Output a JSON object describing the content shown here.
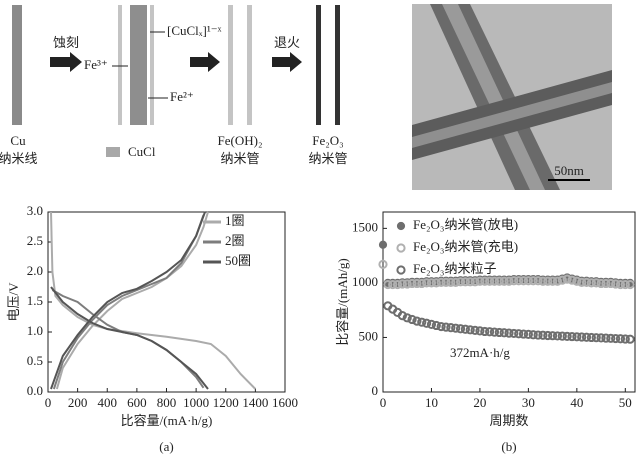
{
  "schematic": {
    "etch": "蚀刻",
    "fe3": "Fe³⁺",
    "complex": "[CuClₓ]¹⁻ˣ",
    "fe2": "Fe²⁺",
    "anneal": "退火",
    "cu": [
      "Cu",
      "纳米线"
    ],
    "cucl": "CuCl",
    "feoh": [
      "Fe(OH)₂",
      "纳米管"
    ],
    "fe2o3": [
      "Fe₂O₃",
      "纳米管"
    ]
  },
  "tem": {
    "scale_bar": "50nm"
  },
  "chart_data": [
    {
      "type": "line",
      "caption": "(a)",
      "xlabel": "比容量/(mA·h/g)",
      "ylabel": "电压/V",
      "xlim": [
        0,
        1600
      ],
      "xticks": [
        0,
        200,
        400,
        600,
        800,
        1000,
        1200,
        1400,
        1600
      ],
      "ylim": [
        0,
        3.0
      ],
      "yticks": [
        {
          "value": 0,
          "label": "0.0"
        },
        0.5,
        {
          "value": 1,
          "label": "1.0"
        },
        1.5,
        {
          "value": 2,
          "label": "2.0"
        },
        2.5,
        {
          "value": 3,
          "label": "3.0"
        }
      ],
      "legend": "upper right",
      "series": [
        {
          "name": "1圈",
          "color": "#ababab",
          "x": [
            20,
            30,
            50,
            100,
            200,
            300,
            400,
            600,
            800,
            1000,
            1100,
            1200,
            1300,
            1400,
            null,
            60,
            100,
            200,
            300,
            400,
            500,
            600,
            700,
            800,
            900,
            1000,
            1050,
            1080
          ],
          "values": [
            3.0,
            2.0,
            1.6,
            1.45,
            1.25,
            1.12,
            1.05,
            0.98,
            0.92,
            0.85,
            0.8,
            0.6,
            0.3,
            0.05,
            null,
            0.05,
            0.4,
            0.8,
            1.1,
            1.35,
            1.55,
            1.65,
            1.75,
            1.9,
            2.1,
            2.45,
            2.75,
            3.0
          ]
        },
        {
          "name": "2圈",
          "color": "#7d7d7d",
          "x": [
            30,
            100,
            200,
            300,
            400,
            500,
            600,
            700,
            800,
            900,
            1000,
            1050,
            null,
            40,
            100,
            200,
            300,
            400,
            500,
            700,
            800,
            900,
            1000,
            1050
          ],
          "values": [
            1.7,
            1.6,
            1.5,
            1.3,
            1.12,
            1.0,
            0.95,
            0.85,
            0.7,
            0.5,
            0.25,
            0.07,
            null,
            0.05,
            0.5,
            0.9,
            1.2,
            1.45,
            1.6,
            1.8,
            1.9,
            2.15,
            2.6,
            2.95
          ]
        },
        {
          "name": "50圈",
          "color": "#555555",
          "x": [
            20,
            100,
            200,
            300,
            400,
            600,
            700,
            800,
            900,
            1000,
            1080,
            null,
            20,
            100,
            200,
            300,
            400,
            500,
            600,
            700,
            800,
            900,
            1000,
            1060
          ],
          "values": [
            1.75,
            1.5,
            1.3,
            1.15,
            1.05,
            0.95,
            0.85,
            0.7,
            0.5,
            0.3,
            0.05,
            null,
            0.05,
            0.6,
            0.95,
            1.25,
            1.5,
            1.65,
            1.72,
            1.85,
            2.0,
            2.2,
            2.6,
            3.0
          ]
        }
      ]
    },
    {
      "type": "scatter",
      "caption": "(b)",
      "xlabel": "周期数",
      "ylabel": "比容量/(mAh/g)",
      "annotation": "372mA·h/g",
      "xlim": [
        0,
        52
      ],
      "xticks": [
        0,
        10,
        20,
        30,
        40,
        50
      ],
      "ylim": [
        0,
        1650
      ],
      "yticks": [
        0,
        500,
        1000,
        1500
      ],
      "legend": "upper left",
      "x": [
        0,
        1,
        2,
        3,
        4,
        5,
        6,
        7,
        8,
        9,
        10,
        11,
        12,
        13,
        14,
        15,
        16,
        17,
        18,
        19,
        20,
        21,
        22,
        23,
        24,
        25,
        26,
        27,
        28,
        29,
        30,
        31,
        32,
        33,
        34,
        35,
        36,
        37,
        38,
        39,
        40,
        41,
        42,
        43,
        44,
        45,
        46,
        47,
        48,
        49,
        50,
        51
      ],
      "series": [
        {
          "name": "Fe₂O₃纳米管(放电)",
          "color": "#6e6e6e",
          "marker": "filled",
          "values": [
            1350,
            1000,
            1000,
            1000,
            1005,
            1005,
            1010,
            1010,
            1010,
            1015,
            1015,
            1015,
            1020,
            1020,
            1020,
            1020,
            1025,
            1025,
            1025,
            1025,
            1030,
            1030,
            1030,
            1030,
            1030,
            1030,
            1030,
            1035,
            1035,
            1035,
            1035,
            1035,
            1035,
            1030,
            1030,
            1030,
            1030,
            1040,
            1050,
            1040,
            1030,
            1020,
            1020,
            1015,
            1015,
            1010,
            1010,
            1010,
            1005,
            1000,
            1000,
            1000
          ]
        },
        {
          "name": "Fe₂O₃纳米管(充电)",
          "color": "#b0b0b0",
          "marker": "open",
          "values": [
            1170,
            985,
            985,
            985,
            990,
            990,
            995,
            995,
            995,
            1000,
            1000,
            1000,
            1005,
            1005,
            1005,
            1005,
            1010,
            1010,
            1010,
            1010,
            1015,
            1015,
            1015,
            1015,
            1015,
            1015,
            1015,
            1020,
            1020,
            1020,
            1020,
            1020,
            1020,
            1015,
            1015,
            1015,
            1015,
            1025,
            1035,
            1025,
            1015,
            1005,
            1005,
            1000,
            1000,
            995,
            995,
            995,
            990,
            985,
            985,
            985
          ]
        },
        {
          "name": "Fe₂O₃纳米粒子",
          "color": "#6e6e6e",
          "marker": "open",
          "values": [
            null,
            790,
            760,
            730,
            700,
            680,
            665,
            650,
            640,
            630,
            620,
            610,
            600,
            595,
            590,
            585,
            580,
            575,
            570,
            565,
            560,
            555,
            552,
            549,
            546,
            543,
            540,
            537,
            534,
            531,
            528,
            525,
            522,
            520,
            518,
            516,
            514,
            512,
            510,
            508,
            506,
            504,
            502,
            500,
            498,
            496,
            494,
            492,
            490,
            488,
            486,
            484
          ]
        }
      ]
    }
  ]
}
